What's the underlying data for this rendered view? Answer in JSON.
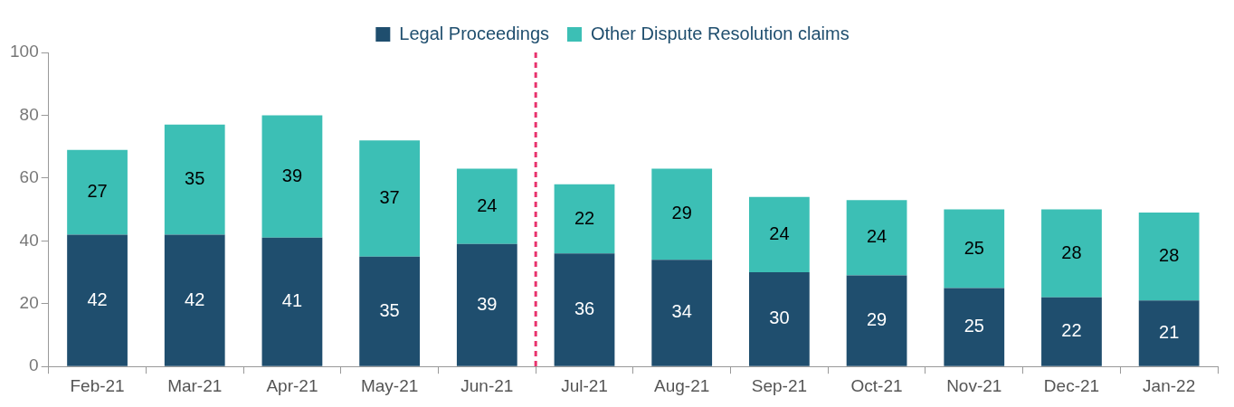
{
  "chart_data": {
    "type": "bar",
    "stacked": true,
    "categories": [
      "Feb-21",
      "Mar-21",
      "Apr-21",
      "May-21",
      "Jun-21",
      "Jul-21",
      "Aug-21",
      "Sep-21",
      "Oct-21",
      "Nov-21",
      "Dec-21",
      "Jan-22"
    ],
    "series": [
      {
        "name": "Legal Proceedings",
        "color": "#1f4e6e",
        "values": [
          42,
          42,
          41,
          35,
          39,
          36,
          34,
          30,
          29,
          25,
          22,
          21
        ]
      },
      {
        "name": "Other Dispute Resolution claims",
        "color": "#3cbfb5",
        "values": [
          27,
          35,
          39,
          37,
          24,
          22,
          29,
          24,
          24,
          25,
          28,
          28
        ]
      }
    ],
    "ylim": [
      0,
      100
    ],
    "yticks": [
      0,
      20,
      40,
      60,
      80,
      100
    ],
    "grid": false,
    "legend": "top",
    "data_labels": true,
    "ref_lines": [
      {
        "axis": "x",
        "value": "Jul-21",
        "color": "#e8336d",
        "line_style": "dashed"
      }
    ]
  }
}
